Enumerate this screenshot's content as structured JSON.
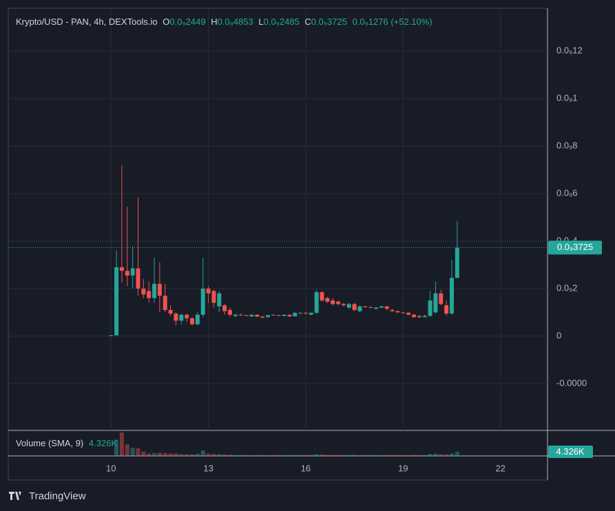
{
  "chart_data": {
    "type": "candlestick",
    "title": "Krypto/USD - PAN, 4h, DEXTools.io",
    "ohlc_legend": [
      {
        "name": "O",
        "text": "0.0₉2449"
      },
      {
        "name": "H",
        "text": "0.0₉4853"
      },
      {
        "name": "L",
        "text": "0.0₉2485"
      },
      {
        "name": "C",
        "text": "0.0₉3725"
      }
    ],
    "change_label": "0.0₉1276 (+52.10%)",
    "up_color": "#26a69a",
    "down_color": "#ef5350",
    "xlim": [
      -19,
      80.7
    ],
    "xticks": [
      {
        "value": 0,
        "label": "10"
      },
      {
        "value": 18,
        "label": "13"
      },
      {
        "value": 36,
        "label": "16"
      },
      {
        "value": 54,
        "label": "19"
      },
      {
        "value": 72,
        "label": "22"
      }
    ],
    "ylim": [
      -3.97e-11,
      1.38e-10
    ],
    "yticks": [
      {
        "value": 1.2e-10,
        "label": "0.0₉12"
      },
      {
        "value": 1e-10,
        "label": "0.0₉1"
      },
      {
        "value": 8e-11,
        "label": "0.0₉8"
      },
      {
        "value": 6e-11,
        "label": "0.0₉6"
      },
      {
        "value": 4e-11,
        "label": "0.0₉4"
      },
      {
        "value": 2e-11,
        "label": "0.0₉2"
      },
      0,
      {
        "value": -2e-11,
        "label": "-0.0000"
      }
    ],
    "grid": true,
    "open": [
      0,
      3e-13,
      2.9e-11,
      2.75e-11,
      2.55e-11,
      2.85e-11,
      2e-11,
      1.9e-11,
      1.6e-11,
      2.2e-11,
      1.7e-11,
      1.1e-11,
      9.5e-12,
      6.5e-12,
      9e-12,
      7.5e-12,
      5e-12,
      9e-12,
      2e-11,
      1.9e-11,
      1.25e-11,
      1.3e-11,
      1.1e-11,
      8.5e-12,
      9e-12,
      8.8e-12,
      8.3e-12,
      9e-12,
      8.2e-12,
      8e-12,
      9e-12,
      8.8e-12,
      8.5e-12,
      9e-12,
      8.3e-12,
      9.5e-12,
      9.8e-12,
      9e-12,
      9.8e-12,
      1.85e-11,
      1.6e-11,
      1.5e-11,
      1.45e-11,
      1.35e-11,
      1.2e-11,
      1.35e-11,
      1.05e-11,
      1.25e-11,
      1.22e-11,
      1.15e-11,
      1.2e-11,
      1.25e-11,
      1.1e-11,
      1.05e-11,
      1e-11,
      9.8e-12,
      9e-12,
      8.5e-12,
      8e-12,
      8.5e-12,
      1e-11,
      1.8e-11,
      1.3e-11,
      9.5e-12,
      2.449e-11
    ],
    "high": [
      5e-13,
      3.6e-11,
      7.2e-11,
      5.45e-11,
      3.8e-11,
      5.85e-11,
      2.4e-11,
      2.3e-11,
      3.3e-11,
      3.1e-11,
      2.2e-11,
      1.3e-11,
      1e-11,
      9.5e-12,
      9.5e-12,
      8e-12,
      1e-11,
      3.3e-11,
      2.1e-11,
      1.95e-11,
      1.9e-11,
      1.35e-11,
      1.2e-11,
      9.5e-12,
      9.5e-12,
      9e-12,
      9.2e-12,
      9.2e-12,
      8.5e-12,
      9e-12,
      9.2e-12,
      9e-12,
      9.2e-12,
      9.2e-12,
      1e-11,
      1e-11,
      1e-11,
      1e-11,
      1.95e-11,
      1.9e-11,
      1.65e-11,
      1.6e-11,
      1.5e-11,
      1.4e-11,
      1.4e-11,
      1.4e-11,
      1.3e-11,
      1.28e-11,
      1.25e-11,
      1.22e-11,
      1.28e-11,
      1.27e-11,
      1.15e-11,
      1.08e-11,
      1.02e-11,
      1e-11,
      9.5e-12,
      8.8e-12,
      9e-12,
      1.9e-11,
      2.3e-11,
      1.95e-11,
      1.5e-11,
      3.2e-11,
      4.853e-11
    ],
    "low": [
      0,
      2e-13,
      2.25e-11,
      2.1e-11,
      2e-11,
      1.7e-11,
      1.6e-11,
      1.4e-11,
      1.4e-11,
      1e-11,
      1e-11,
      8.5e-12,
      4.5e-12,
      5e-12,
      6e-12,
      4.5e-12,
      4.5e-12,
      8e-12,
      1.4e-11,
      1.2e-11,
      1e-11,
      9e-12,
      8e-12,
      7.8e-12,
      8.5e-12,
      8.4e-12,
      8e-12,
      8e-12,
      7.5e-12,
      7.8e-12,
      8.6e-12,
      8.5e-12,
      8.3e-12,
      8e-12,
      8.2e-12,
      9.3e-12,
      9e-12,
      8.8e-12,
      9.5e-12,
      1.45e-11,
      1.4e-11,
      1.3e-11,
      1.3e-11,
      1.25e-11,
      1.15e-11,
      1.05e-11,
      1e-11,
      1.2e-11,
      1.18e-11,
      1.12e-11,
      1.18e-11,
      1.1e-11,
      1.02e-11,
      9.8e-12,
      9.5e-12,
      8.8e-12,
      7.8e-12,
      7.6e-12,
      7.8e-12,
      8.2e-12,
      9.5e-12,
      1.3e-11,
      8.5e-12,
      9e-12,
      2.485e-11
    ],
    "close": [
      3e-13,
      2.9e-11,
      2.75e-11,
      2.55e-11,
      2.85e-11,
      2e-11,
      1.75e-11,
      1.6e-11,
      2.2e-11,
      1.7e-11,
      1.1e-11,
      9.5e-12,
      6.5e-12,
      9e-12,
      7.5e-12,
      5e-12,
      9e-12,
      2e-11,
      1.8e-11,
      1.4e-11,
      1.8e-11,
      1.05e-11,
      9e-12,
      9e-12,
      8.8e-12,
      8.6e-12,
      9e-12,
      8.2e-12,
      7.8e-12,
      8.8e-12,
      8.8e-12,
      8.7e-12,
      9e-12,
      8.3e-12,
      9.8e-12,
      9.8e-12,
      9.5e-12,
      9.8e-12,
      1.85e-11,
      1.5e-11,
      1.45e-11,
      1.35e-11,
      1.35e-11,
      1.3e-11,
      1.35e-11,
      1.1e-11,
      1.25e-11,
      1.22e-11,
      1.2e-11,
      1.2e-11,
      1.25e-11,
      1.15e-11,
      1.05e-11,
      1e-11,
      9.8e-12,
      9e-12,
      8e-12,
      8e-12,
      8.5e-12,
      1.5e-11,
      1.8e-11,
      1.35e-11,
      9.5e-12,
      2.45e-11,
      3.725e-11
    ],
    "last_price_label": "0.0₉3725",
    "volume": {
      "title": "Volume (SMA, 9)",
      "last_label": "4.326K",
      "ylim": [
        0,
        26660
      ],
      "values": [
        300,
        17000,
        24500,
        12000,
        8500,
        8000,
        4500,
        2500,
        3000,
        3200,
        2800,
        2500,
        2600,
        2000,
        1800,
        1500,
        2200,
        5800,
        2500,
        2000,
        1800,
        1500,
        1200,
        1000,
        900,
        1100,
        900,
        1000,
        800,
        900,
        1000,
        900,
        1000,
        900,
        1100,
        1000,
        900,
        1000,
        1800,
        1500,
        1200,
        1000,
        1100,
        900,
        1000,
        1200,
        900,
        1000,
        900,
        1000,
        900,
        1100,
        900,
        1000,
        900,
        1000,
        1200,
        900,
        1000,
        2000,
        2500,
        1800,
        1500,
        2500,
        4326
      ]
    }
  },
  "branding": "TradingView"
}
